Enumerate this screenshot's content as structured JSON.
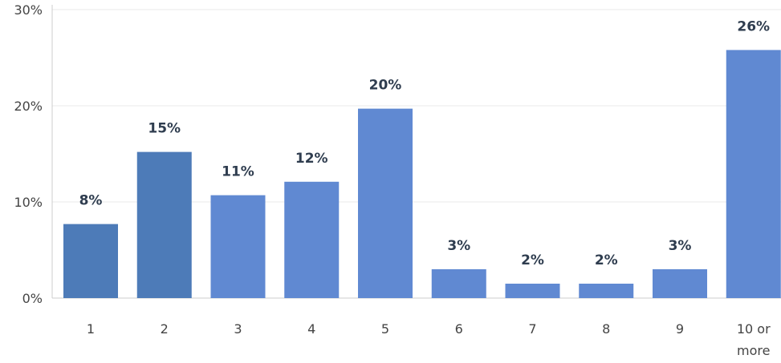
{
  "chart_data": {
    "type": "bar",
    "categories": [
      [
        "1"
      ],
      [
        "2"
      ],
      [
        "3"
      ],
      [
        "4"
      ],
      [
        "5"
      ],
      [
        "6"
      ],
      [
        "7"
      ],
      [
        "8"
      ],
      [
        "9"
      ],
      [
        "10 or",
        "more"
      ]
    ],
    "values": [
      8,
      15,
      11,
      12,
      20,
      3,
      2,
      2,
      3,
      26
    ],
    "bar_heights_pct": [
      7.7,
      15.2,
      10.7,
      12.1,
      19.7,
      3.0,
      1.5,
      1.5,
      3.0,
      25.8
    ],
    "labels": [
      "8%",
      "15%",
      "11%",
      "12%",
      "20%",
      "3%",
      "2%",
      "2%",
      "3%",
      "26%"
    ],
    "yticks": [
      "0%",
      "10%",
      "20%",
      "30%"
    ],
    "ytick_values": [
      0,
      10,
      20,
      30
    ],
    "ylim": [
      0,
      30
    ],
    "grid": true,
    "colors": {
      "bar": "#6089d2",
      "bar_highlight": "#4d7bb8",
      "grid": "#e8e8e8",
      "axis": "#cccccc"
    },
    "highlighted": [
      0,
      1
    ]
  }
}
